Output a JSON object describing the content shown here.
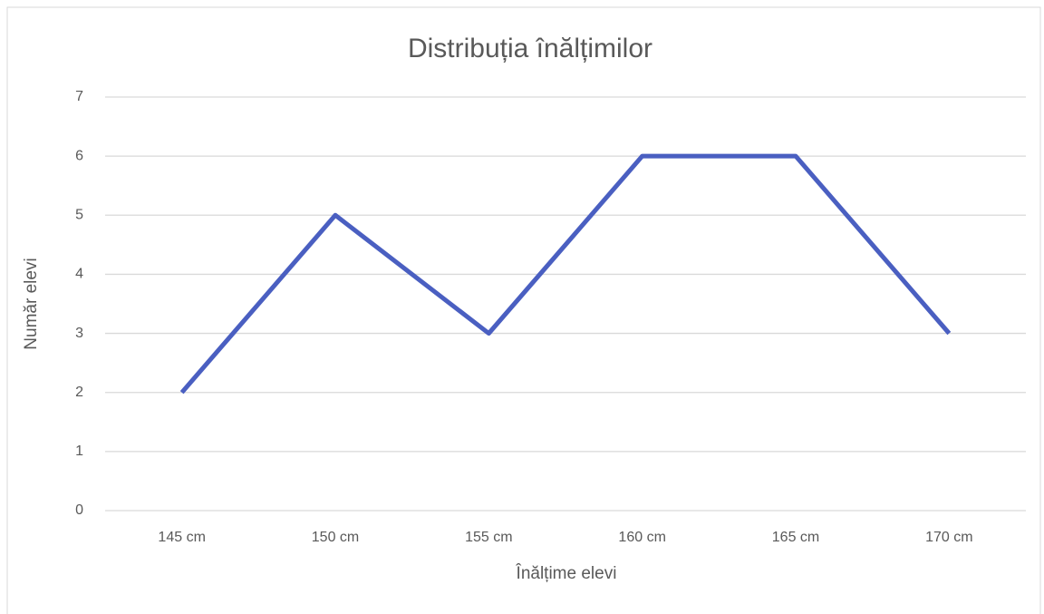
{
  "chart_data": {
    "type": "line",
    "title": "Distribuția înălțimilor",
    "x_label": "Înălțime elevi",
    "y_label": "Număr elevi",
    "categories": [
      "145 cm",
      "150 cm",
      "155 cm",
      "160 cm",
      "165 cm",
      "170 cm"
    ],
    "series": [
      {
        "name": "Număr elevi",
        "color": "#4a5fc1",
        "values": [
          2,
          5,
          3,
          6,
          6,
          3
        ]
      }
    ],
    "ylim": [
      0,
      7
    ],
    "yticks": [
      0,
      1,
      2,
      3,
      4,
      5,
      6,
      7
    ],
    "grid": true
  }
}
